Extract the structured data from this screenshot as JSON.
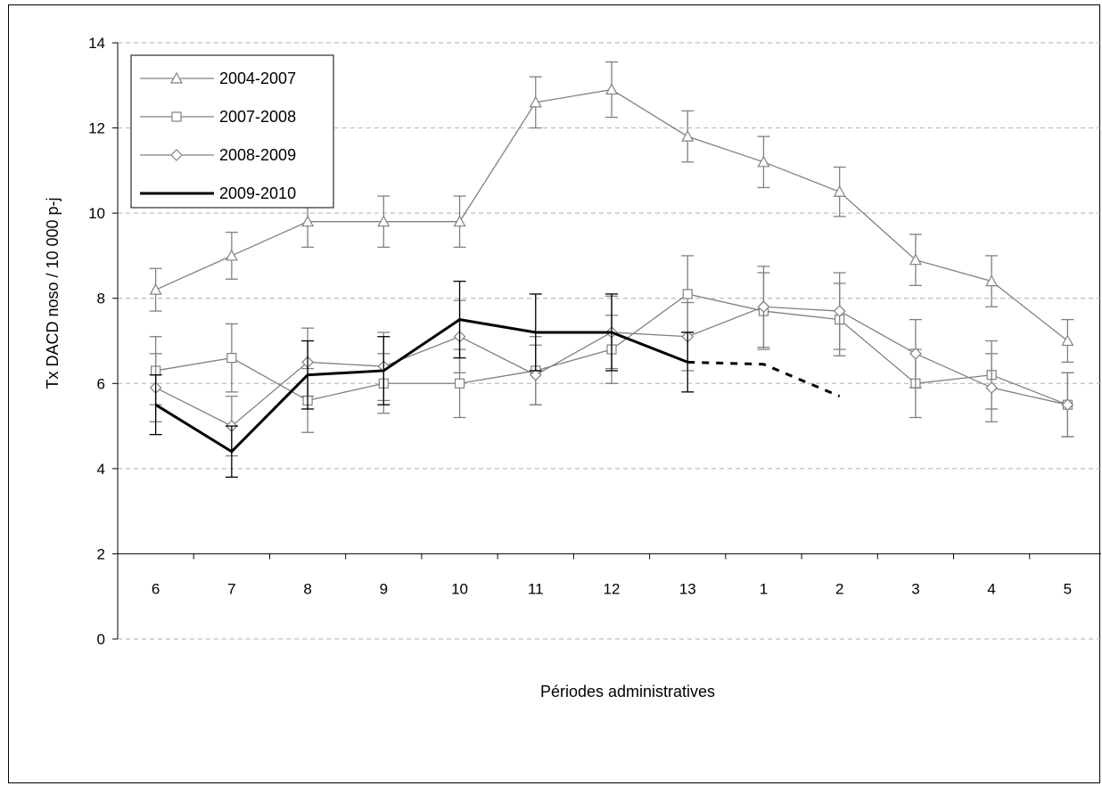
{
  "chart_data": {
    "type": "line",
    "xlabel": "Périodes administratives",
    "ylabel": "Tx DACD noso / 10 000 p-j",
    "categories": [
      "6",
      "7",
      "8",
      "9",
      "10",
      "11",
      "12",
      "13",
      "1",
      "2",
      "3",
      "4",
      "5"
    ],
    "ylim": [
      0,
      14
    ],
    "yticks": [
      0,
      2,
      4,
      6,
      8,
      10,
      12,
      14
    ],
    "x_axis_at": 2,
    "grid": "horizontal dashed",
    "legend_position": "top-left",
    "series": [
      {
        "name": "2004-2007",
        "marker": "triangle",
        "color": "#808080",
        "values": [
          8.2,
          9.0,
          9.8,
          9.8,
          9.8,
          12.6,
          12.9,
          11.8,
          11.2,
          10.5,
          8.9,
          8.4,
          7.0
        ],
        "error": [
          0.5,
          0.55,
          0.6,
          0.6,
          0.6,
          0.6,
          0.65,
          0.6,
          0.6,
          0.58,
          0.6,
          0.6,
          0.5
        ]
      },
      {
        "name": "2007-2008",
        "marker": "square",
        "color": "#808080",
        "values": [
          6.3,
          6.6,
          5.6,
          6.0,
          6.0,
          6.3,
          6.8,
          8.1,
          7.7,
          7.5,
          6.0,
          6.2,
          5.5
        ],
        "error": [
          0.8,
          0.8,
          0.75,
          0.7,
          0.8,
          0.8,
          0.8,
          0.9,
          0.9,
          0.85,
          0.8,
          0.8,
          0.75
        ]
      },
      {
        "name": "2008-2009",
        "marker": "diamond",
        "color": "#808080",
        "values": [
          5.9,
          5.0,
          6.5,
          6.4,
          7.1,
          6.2,
          7.2,
          7.1,
          7.8,
          7.7,
          6.7,
          5.9,
          5.5
        ],
        "error": [
          0.8,
          0.7,
          0.8,
          0.8,
          0.85,
          0.7,
          0.85,
          0.8,
          0.95,
          0.9,
          0.8,
          0.8,
          0.75
        ]
      },
      {
        "name": "2009-2010",
        "marker": "none",
        "color": "#000000",
        "values": [
          5.5,
          4.4,
          6.2,
          6.3,
          7.5,
          7.2,
          7.2,
          6.5,
          null,
          null,
          null,
          null,
          null
        ],
        "error": [
          0.7,
          0.6,
          0.8,
          0.8,
          0.9,
          0.9,
          0.9,
          0.7,
          null,
          null,
          null,
          null,
          null
        ],
        "projection": [
          6.5,
          6.45,
          5.7
        ]
      }
    ]
  }
}
